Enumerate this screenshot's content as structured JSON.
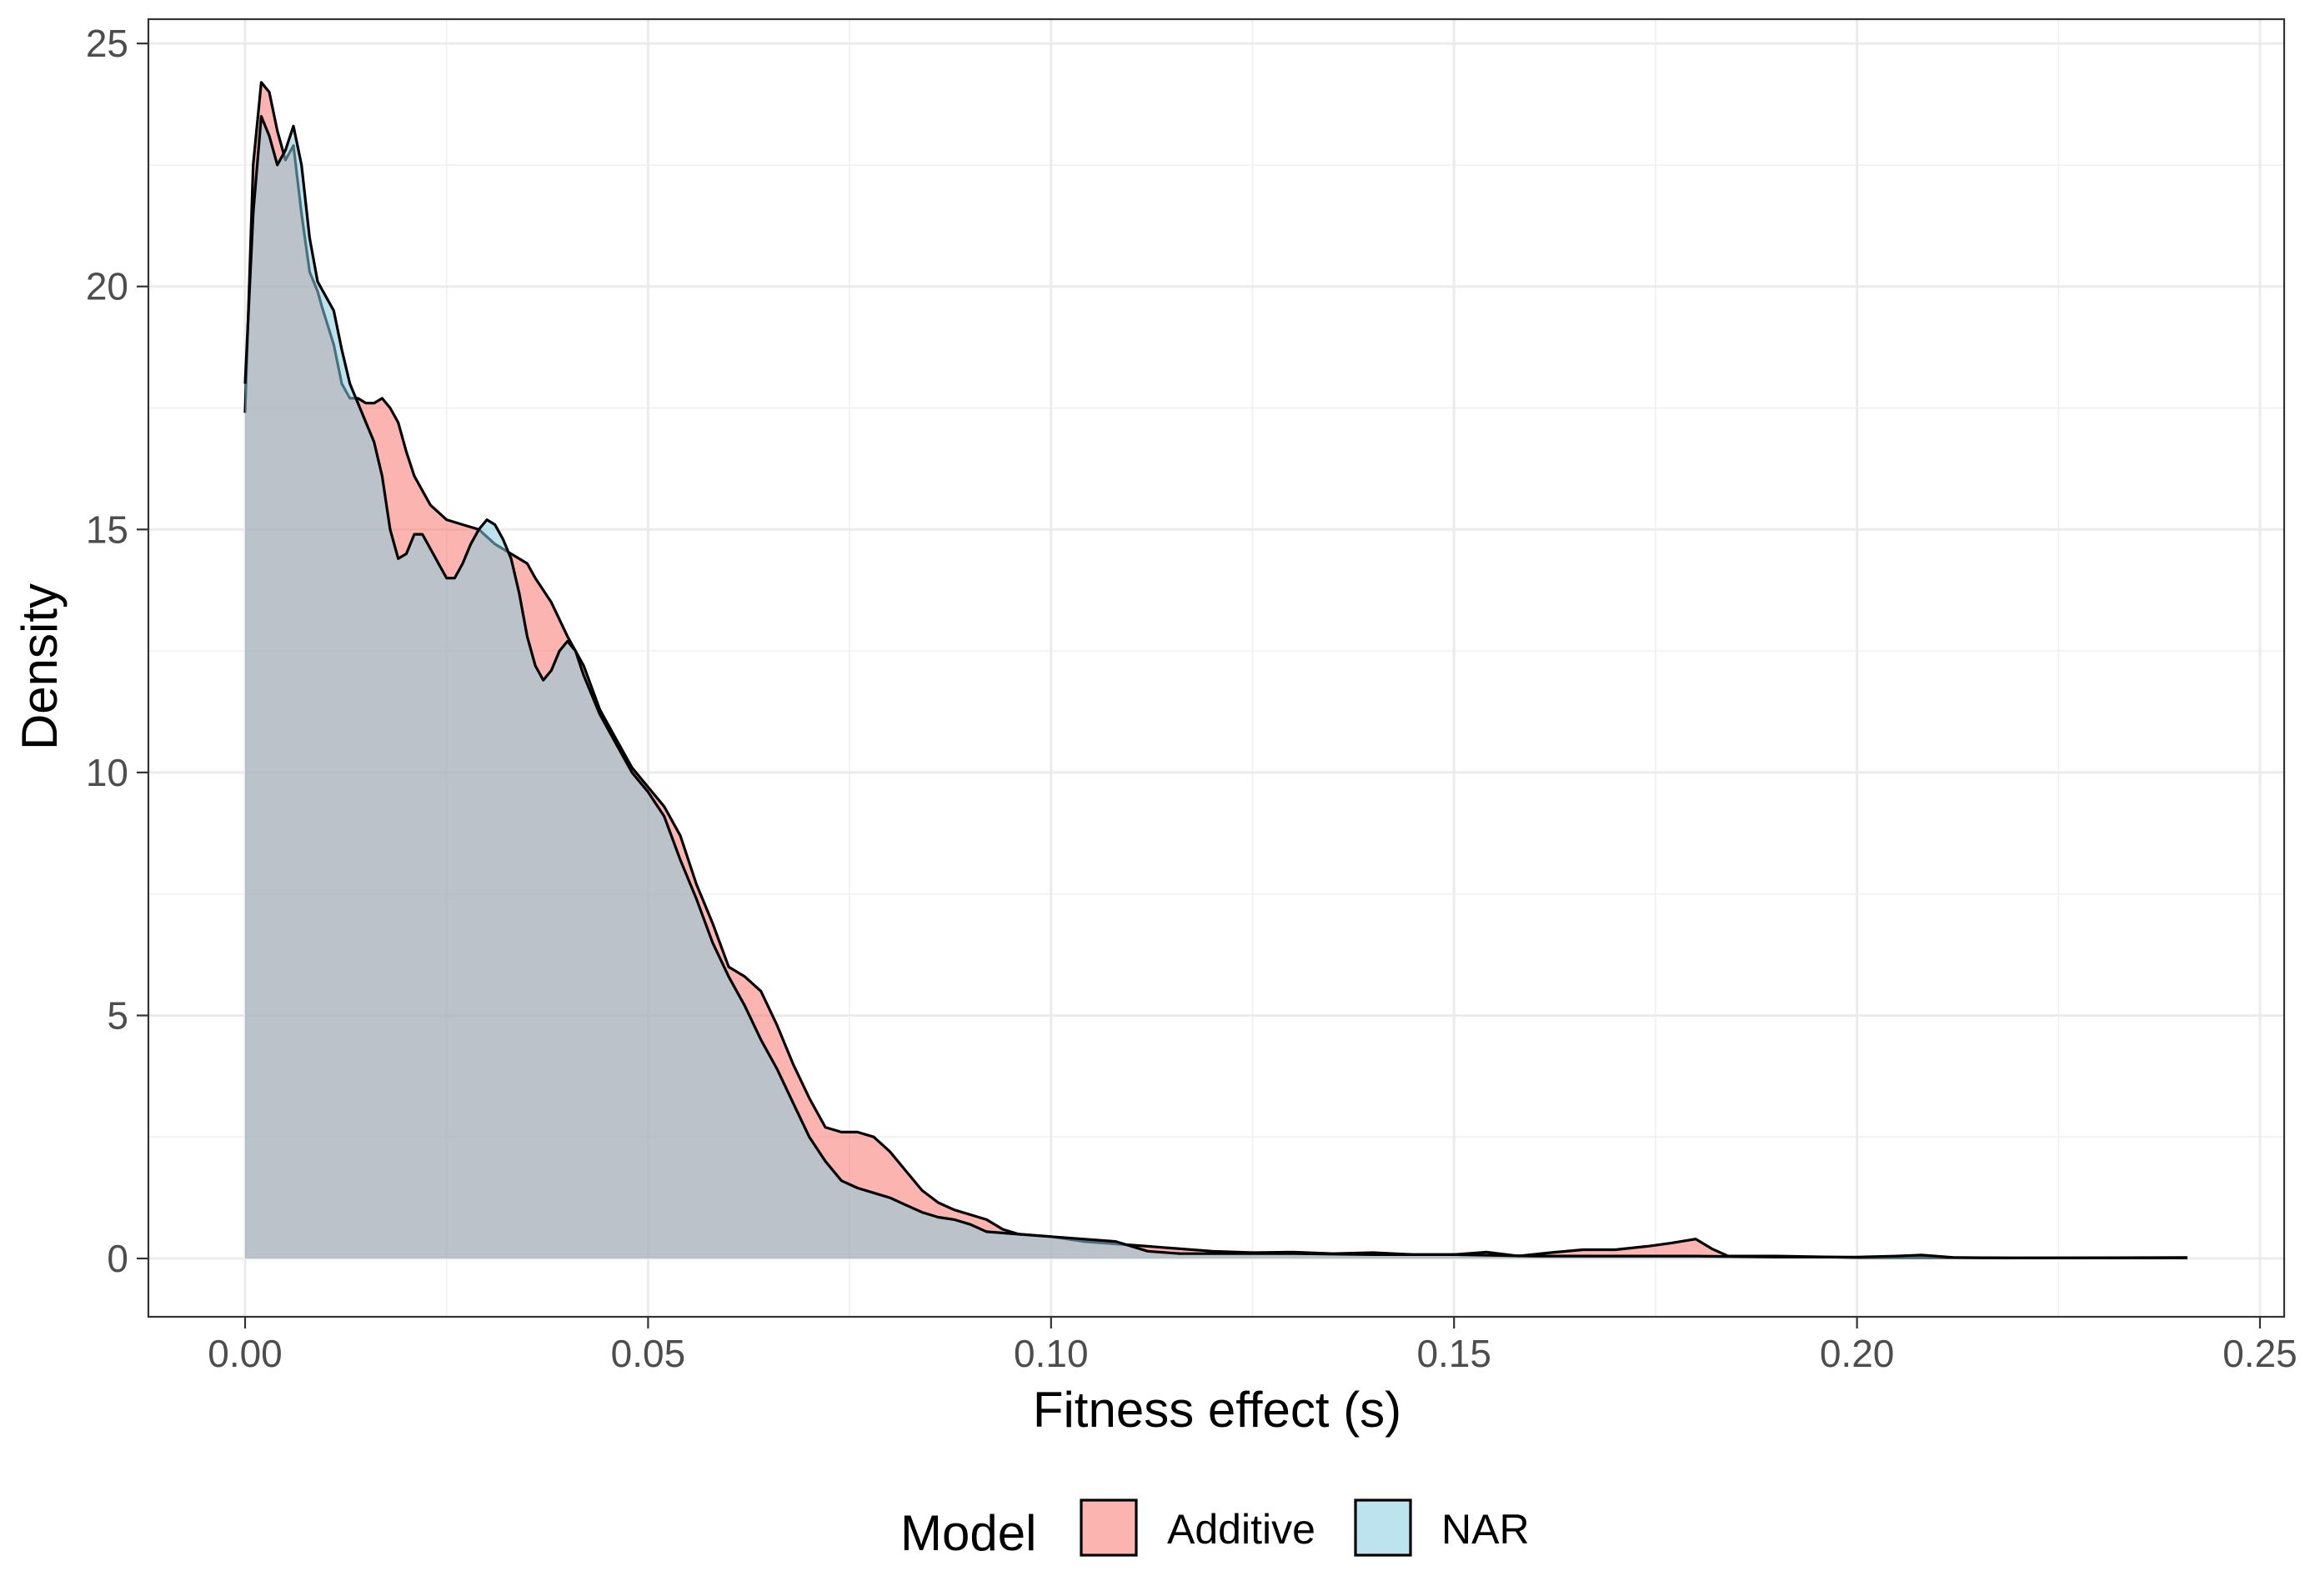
{
  "chart_data": {
    "type": "area",
    "xlabel": "Fitness effect (s)",
    "ylabel": "Density",
    "xlim": [
      -0.012,
      0.253
    ],
    "ylim": [
      -1.2,
      25.5
    ],
    "x_ticks": [
      0.0,
      0.05,
      0.1,
      0.15,
      0.2,
      0.25
    ],
    "x_tick_labels": [
      "0.00",
      "0.05",
      "0.10",
      "0.15",
      "0.20",
      "0.25"
    ],
    "y_ticks": [
      0,
      5,
      10,
      15,
      20,
      25
    ],
    "y_tick_labels": [
      "0",
      "5",
      "10",
      "15",
      "20",
      "25"
    ],
    "grid": true,
    "legend": {
      "title": "Model",
      "position": "bottom"
    },
    "series": [
      {
        "name": "Additive",
        "color": "#F8766D",
        "points": [
          [
            0.0,
            17.4
          ],
          [
            0.001,
            22.5
          ],
          [
            0.002,
            24.2
          ],
          [
            0.003,
            24.0
          ],
          [
            0.004,
            23.2
          ],
          [
            0.005,
            22.6
          ],
          [
            0.006,
            22.9
          ],
          [
            0.007,
            21.5
          ],
          [
            0.008,
            20.3
          ],
          [
            0.009,
            19.9
          ],
          [
            0.0095,
            19.6
          ],
          [
            0.011,
            18.8
          ],
          [
            0.012,
            18.0
          ],
          [
            0.013,
            17.7
          ],
          [
            0.014,
            17.7
          ],
          [
            0.015,
            17.6
          ],
          [
            0.016,
            17.6
          ],
          [
            0.017,
            17.7
          ],
          [
            0.018,
            17.5
          ],
          [
            0.019,
            17.2
          ],
          [
            0.02,
            16.6
          ],
          [
            0.021,
            16.1
          ],
          [
            0.022,
            15.8
          ],
          [
            0.023,
            15.5
          ],
          [
            0.025,
            15.2
          ],
          [
            0.027,
            15.1
          ],
          [
            0.029,
            15.0
          ],
          [
            0.031,
            14.7
          ],
          [
            0.033,
            14.5
          ],
          [
            0.035,
            14.3
          ],
          [
            0.036,
            14.0
          ],
          [
            0.038,
            13.5
          ],
          [
            0.04,
            12.8
          ],
          [
            0.042,
            12.2
          ],
          [
            0.044,
            11.3
          ],
          [
            0.046,
            10.7
          ],
          [
            0.048,
            10.1
          ],
          [
            0.05,
            9.7
          ],
          [
            0.052,
            9.3
          ],
          [
            0.054,
            8.7
          ],
          [
            0.056,
            7.7
          ],
          [
            0.058,
            6.9
          ],
          [
            0.06,
            6.0
          ],
          [
            0.062,
            5.8
          ],
          [
            0.064,
            5.5
          ],
          [
            0.066,
            4.8
          ],
          [
            0.068,
            4.0
          ],
          [
            0.07,
            3.3
          ],
          [
            0.072,
            2.7
          ],
          [
            0.074,
            2.6
          ],
          [
            0.076,
            2.6
          ],
          [
            0.078,
            2.5
          ],
          [
            0.08,
            2.2
          ],
          [
            0.082,
            1.8
          ],
          [
            0.084,
            1.4
          ],
          [
            0.086,
            1.15
          ],
          [
            0.088,
            1.0
          ],
          [
            0.09,
            0.9
          ],
          [
            0.092,
            0.8
          ],
          [
            0.094,
            0.6
          ],
          [
            0.096,
            0.5
          ],
          [
            0.1,
            0.45
          ],
          [
            0.104,
            0.35
          ],
          [
            0.108,
            0.3
          ],
          [
            0.112,
            0.25
          ],
          [
            0.116,
            0.2
          ],
          [
            0.12,
            0.15
          ],
          [
            0.125,
            0.12
          ],
          [
            0.13,
            0.13
          ],
          [
            0.135,
            0.1
          ],
          [
            0.14,
            0.12
          ],
          [
            0.145,
            0.08
          ],
          [
            0.15,
            0.08
          ],
          [
            0.154,
            0.13
          ],
          [
            0.158,
            0.05
          ],
          [
            0.162,
            0.12
          ],
          [
            0.166,
            0.18
          ],
          [
            0.17,
            0.18
          ],
          [
            0.174,
            0.25
          ],
          [
            0.177,
            0.32
          ],
          [
            0.18,
            0.4
          ],
          [
            0.182,
            0.2
          ],
          [
            0.184,
            0.05
          ],
          [
            0.19,
            0.05
          ],
          [
            0.2,
            0.02
          ],
          [
            0.21,
            0.02
          ],
          [
            0.22,
            0.01
          ],
          [
            0.241,
            0.01
          ]
        ]
      },
      {
        "name": "NAR",
        "color": "#87CEE0",
        "points": [
          [
            0.0,
            18.0
          ],
          [
            0.001,
            21.5
          ],
          [
            0.002,
            23.5
          ],
          [
            0.003,
            23.1
          ],
          [
            0.004,
            22.5
          ],
          [
            0.005,
            22.8
          ],
          [
            0.006,
            23.3
          ],
          [
            0.007,
            22.5
          ],
          [
            0.008,
            21.0
          ],
          [
            0.009,
            20.1
          ],
          [
            0.01,
            19.8
          ],
          [
            0.011,
            19.5
          ],
          [
            0.012,
            18.7
          ],
          [
            0.013,
            18.0
          ],
          [
            0.014,
            17.6
          ],
          [
            0.015,
            17.2
          ],
          [
            0.016,
            16.8
          ],
          [
            0.017,
            16.1
          ],
          [
            0.018,
            15.0
          ],
          [
            0.019,
            14.4
          ],
          [
            0.02,
            14.5
          ],
          [
            0.021,
            14.9
          ],
          [
            0.022,
            14.9
          ],
          [
            0.023,
            14.6
          ],
          [
            0.024,
            14.3
          ],
          [
            0.025,
            14.0
          ],
          [
            0.026,
            14.0
          ],
          [
            0.027,
            14.3
          ],
          [
            0.028,
            14.7
          ],
          [
            0.029,
            15.0
          ],
          [
            0.03,
            15.2
          ],
          [
            0.031,
            15.1
          ],
          [
            0.032,
            14.8
          ],
          [
            0.033,
            14.4
          ],
          [
            0.034,
            13.7
          ],
          [
            0.035,
            12.8
          ],
          [
            0.036,
            12.2
          ],
          [
            0.037,
            11.9
          ],
          [
            0.038,
            12.1
          ],
          [
            0.039,
            12.5
          ],
          [
            0.04,
            12.7
          ],
          [
            0.041,
            12.5
          ],
          [
            0.042,
            12.0
          ],
          [
            0.044,
            11.2
          ],
          [
            0.046,
            10.6
          ],
          [
            0.048,
            10.0
          ],
          [
            0.05,
            9.6
          ],
          [
            0.052,
            9.1
          ],
          [
            0.054,
            8.2
          ],
          [
            0.056,
            7.4
          ],
          [
            0.058,
            6.5
          ],
          [
            0.06,
            5.8
          ],
          [
            0.062,
            5.2
          ],
          [
            0.064,
            4.5
          ],
          [
            0.066,
            3.9
          ],
          [
            0.068,
            3.2
          ],
          [
            0.07,
            2.5
          ],
          [
            0.072,
            2.0
          ],
          [
            0.074,
            1.6
          ],
          [
            0.076,
            1.45
          ],
          [
            0.078,
            1.35
          ],
          [
            0.08,
            1.25
          ],
          [
            0.082,
            1.1
          ],
          [
            0.084,
            0.95
          ],
          [
            0.086,
            0.85
          ],
          [
            0.088,
            0.8
          ],
          [
            0.09,
            0.7
          ],
          [
            0.092,
            0.55
          ],
          [
            0.096,
            0.5
          ],
          [
            0.1,
            0.45
          ],
          [
            0.104,
            0.4
          ],
          [
            0.108,
            0.35
          ],
          [
            0.112,
            0.15
          ],
          [
            0.116,
            0.1
          ],
          [
            0.12,
            0.1
          ],
          [
            0.13,
            0.1
          ],
          [
            0.14,
            0.08
          ],
          [
            0.15,
            0.08
          ],
          [
            0.16,
            0.05
          ],
          [
            0.17,
            0.05
          ],
          [
            0.18,
            0.05
          ],
          [
            0.19,
            0.03
          ],
          [
            0.2,
            0.03
          ],
          [
            0.205,
            0.05
          ],
          [
            0.208,
            0.07
          ],
          [
            0.212,
            0.02
          ],
          [
            0.22,
            0.01
          ],
          [
            0.241,
            0.02
          ]
        ]
      }
    ]
  }
}
